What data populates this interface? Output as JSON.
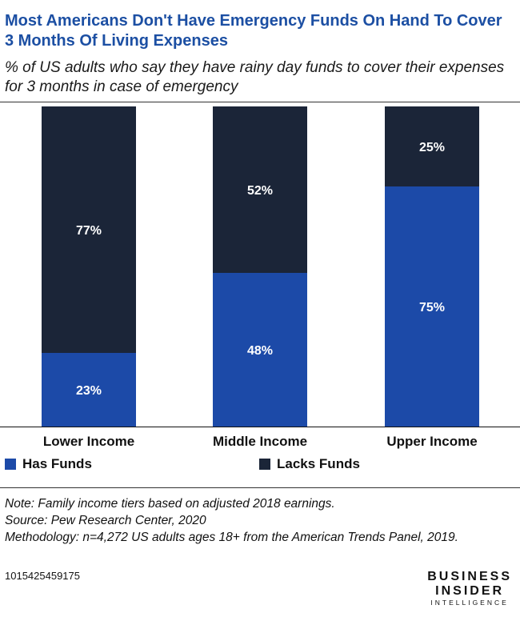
{
  "header": {
    "title": "Most Americans Don't Have Emergency Funds On Hand To Cover 3 Months Of Living Expenses",
    "subtitle": "% of US adults who say they have rainy day funds to cover their expenses for 3 months in case of emergency"
  },
  "chart_data": {
    "type": "bar",
    "stacked": true,
    "categories": [
      "Lower Income",
      "Middle Income",
      "Upper Income"
    ],
    "series": [
      {
        "name": "Has Funds",
        "values": [
          23,
          48,
          75
        ],
        "labels": [
          "23%",
          "48%",
          "75%"
        ],
        "color": "#1c4aa8"
      },
      {
        "name": "Lacks Funds",
        "values": [
          77,
          52,
          25
        ],
        "labels": [
          "77%",
          "52%",
          "25%"
        ],
        "color": "#1b2538"
      }
    ],
    "ylim": [
      0,
      100
    ],
    "grid": false,
    "legend_position": "bottom-left"
  },
  "legend": {
    "items": [
      {
        "label": "Has Funds",
        "color": "#1c4aa8"
      },
      {
        "label": "Lacks Funds",
        "color": "#1b2538"
      }
    ]
  },
  "notes": {
    "note": "Note: Family income tiers based on adjusted 2018 earnings.",
    "source": "Source: Pew Research Center, 2020",
    "methodology": "Methodology: n=4,272 US adults ages 18+ from the American Trends Panel, 2019."
  },
  "footer": {
    "chart_id": "1015425459175",
    "logo_line1": "BUSINESS",
    "logo_line2": "INSIDER",
    "logo_line3": "INTELLIGENCE"
  }
}
